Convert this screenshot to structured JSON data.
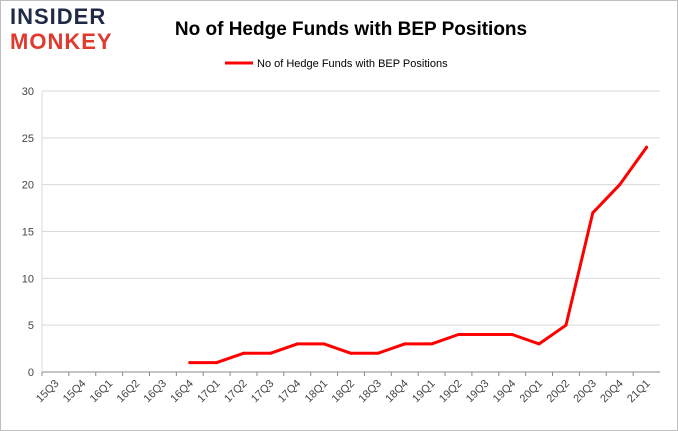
{
  "logo": {
    "line1": "INSIDER",
    "line2": "MONKEY"
  },
  "chart_data": {
    "type": "line",
    "title": "No of Hedge Funds with BEP Positions",
    "xlabel": "",
    "ylabel": "",
    "categories": [
      "15Q3",
      "15Q4",
      "16Q1",
      "16Q2",
      "16Q3",
      "16Q4",
      "17Q1",
      "17Q2",
      "17Q3",
      "17Q4",
      "18Q1",
      "18Q2",
      "18Q3",
      "18Q4",
      "19Q1",
      "19Q2",
      "19Q3",
      "19Q4",
      "20Q1",
      "20Q2",
      "20Q3",
      "20Q4",
      "21Q1"
    ],
    "series": [
      {
        "name": "No of Hedge Funds with BEP Positions",
        "color": "#ff0000",
        "values": [
          null,
          null,
          null,
          null,
          null,
          1,
          1,
          2,
          2,
          3,
          3,
          2,
          2,
          3,
          3,
          4,
          4,
          4,
          3,
          5,
          17,
          20,
          24
        ]
      }
    ],
    "ylim": [
      0,
      30
    ],
    "yticks": [
      0,
      5,
      10,
      15,
      20,
      25,
      30
    ],
    "grid": true,
    "legend": "top-center"
  }
}
